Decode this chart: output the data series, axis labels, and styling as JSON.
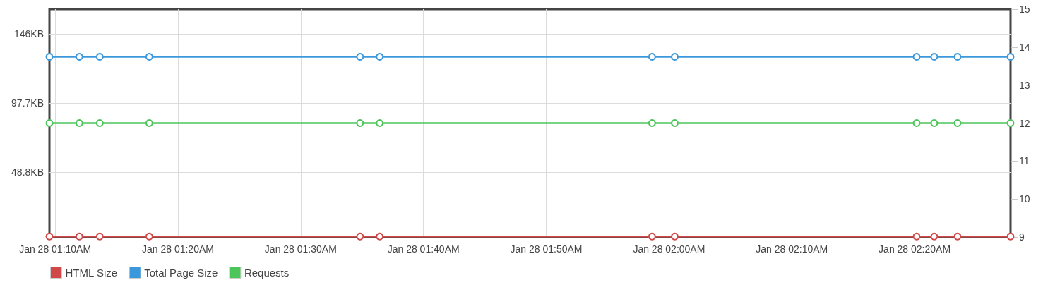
{
  "chart_data": {
    "type": "line",
    "x": [
      "--01-28T01:09:32",
      "--01-28T01:11:58",
      "--01-28T01:13:38",
      "--01-28T01:17:40",
      "--01-28T01:34:50",
      "--01-28T01:36:26",
      "--01-28T01:58:37",
      "--01-28T02:00:28",
      "--01-28T02:20:10",
      "--01-28T02:21:36",
      "--01-28T02:23:30",
      "--01-28T02:27:49"
    ],
    "series": [
      {
        "name": "HTML Size",
        "color": "#d04848",
        "values": [
          3.3,
          3.3,
          3.3,
          3.3,
          3.3,
          3.3,
          3.3,
          3.3,
          3.3,
          3.3,
          3.3,
          3.3
        ]
      },
      {
        "name": "Total Page Size",
        "color": "#3c98dc",
        "values": [
          130.5,
          130.5,
          130.5,
          130.5,
          130.5,
          130.5,
          130.5,
          130.5,
          130.5,
          130.5,
          130.5,
          130.5
        ]
      },
      {
        "name": "Requests",
        "color": "#4cc65a",
        "axis": "y2",
        "values": [
          12,
          12,
          12,
          12,
          12,
          12,
          12,
          12,
          12,
          12,
          12,
          12
        ]
      }
    ],
    "xlim": [
      "--01-28T01:09:32",
      "--01-28T02:27:49"
    ],
    "xticks": [
      {
        "value": "--01-28T01:10",
        "label": "Jan 28 01:10AM"
      },
      {
        "value": "--01-28T01:20",
        "label": "Jan 28 01:20AM"
      },
      {
        "value": "--01-28T01:30",
        "label": "Jan 28 01:30AM"
      },
      {
        "value": "--01-28T01:40",
        "label": "Jan 28 01:40AM"
      },
      {
        "value": "--01-28T01:50",
        "label": "Jan 28 01:50AM"
      },
      {
        "value": "--01-28T02:00",
        "label": "Jan 28 02:00AM"
      },
      {
        "value": "--01-28T02:10",
        "label": "Jan 28 02:10AM"
      },
      {
        "value": "--01-28T02:20",
        "label": "Jan 28 02:20AM"
      }
    ],
    "ylim": [
      2.9,
      164.2
    ],
    "yticks": [
      {
        "value": 48.83,
        "label": "48.8KB"
      },
      {
        "value": 97.66,
        "label": "97.7KB"
      },
      {
        "value": 146.48,
        "label": "146KB"
      }
    ],
    "y2lim": [
      9,
      15
    ],
    "y2ticks": [
      9,
      10,
      11,
      12,
      13,
      14,
      15
    ],
    "grid": true,
    "legend": "bottom left",
    "marker": "circle",
    "line_style": "solid"
  }
}
